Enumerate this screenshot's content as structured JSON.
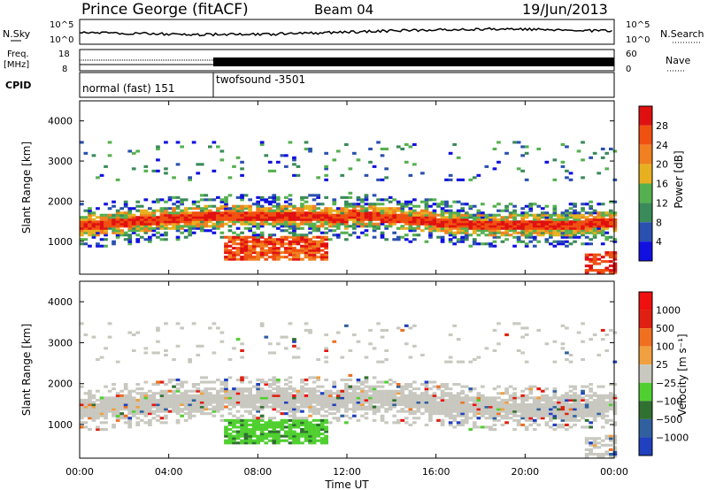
{
  "header": {
    "site": "Prince George (fitACF)",
    "beam": "Beam 04",
    "date": "19/Jun/2013"
  },
  "noise_panel": {
    "left_label": "N.Sky",
    "right_label": "N.Search",
    "tick_top": "10^5",
    "tick_bottom": "10^0"
  },
  "freq_panel": {
    "left_label_1": "Freq.",
    "left_label_2": "[MHz]",
    "right_label": "Nave",
    "left_ticks": [
      "18",
      "8"
    ],
    "right_ticks": [
      "60",
      "0"
    ]
  },
  "cpid_panel": {
    "label": "CPID",
    "segments": [
      {
        "text": "normal (fast) 151",
        "start_hour": 0,
        "end_hour": 6
      },
      {
        "text": "twofsound -3501",
        "start_hour": 6,
        "end_hour": 24
      }
    ]
  },
  "chart_data": [
    {
      "type": "heatmap",
      "quantity": "Power",
      "colorbar_label": "Power [dB]",
      "colorbar_ticks": [
        "28",
        "24",
        "20",
        "16",
        "12",
        "8",
        "4"
      ],
      "ylabel": "Slant Range [km]",
      "yticks": [
        "4000",
        "3000",
        "2000",
        "1000"
      ],
      "ylim": [
        180,
        4500
      ],
      "xlim": [
        0,
        24
      ]
    },
    {
      "type": "heatmap",
      "quantity": "Velocity",
      "colorbar_label": "Velocity [m s⁻¹]",
      "colorbar_ticks": [
        "1000",
        "500",
        "100",
        "25",
        "−25",
        "−100",
        "−500",
        "−1000"
      ],
      "ylabel": "Slant Range [km]",
      "yticks": [
        "4000",
        "3000",
        "2000",
        "1000"
      ],
      "ylim": [
        180,
        4500
      ],
      "xlim": [
        0,
        24
      ],
      "xticks": [
        "00:00",
        "04:00",
        "08:00",
        "12:00",
        "16:00",
        "20:00",
        "00:00"
      ],
      "xlabel": "Time UT"
    }
  ],
  "colors": {
    "power": [
      "#1010e0",
      "#2a50b0",
      "#3a8a5a",
      "#55b050",
      "#e8b020",
      "#f08020",
      "#f05010",
      "#e01010"
    ],
    "velocity": [
      "#2040c0",
      "#3060a0",
      "#307030",
      "#50d030",
      "#c8c8c0",
      "#f0a040",
      "#f07020",
      "#e02010",
      "#f01010"
    ]
  }
}
